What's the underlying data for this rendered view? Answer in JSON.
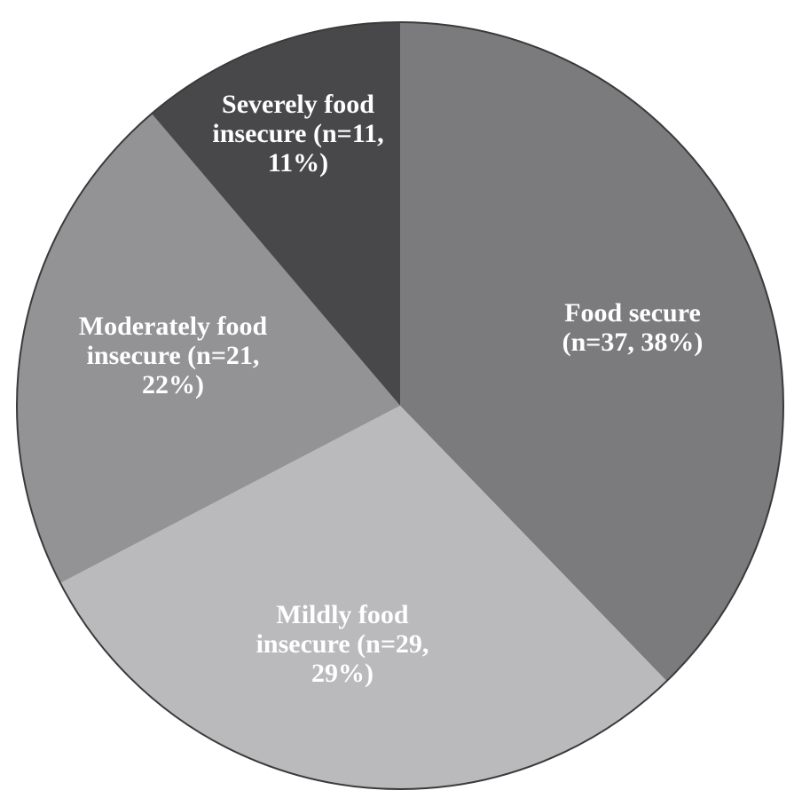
{
  "chart_data": {
    "type": "pie",
    "start_angle_deg": 0,
    "direction": "clockwise",
    "slices": [
      {
        "label": "Food secure",
        "n": 37,
        "percent": 38,
        "color": "#7b7b7d",
        "label_lines": [
          "Food secure",
          "(n=37, 38%)"
        ]
      },
      {
        "label": "Mildly food insecure",
        "n": 29,
        "percent": 29,
        "color": "#bababd",
        "label_lines": [
          "Mildly food",
          "insecure (n=29,",
          "29%)"
        ]
      },
      {
        "label": "Moderately food insecure",
        "n": 21,
        "percent": 22,
        "color": "#939396",
        "label_lines": [
          "Moderately food",
          "insecure (n=21,",
          "22%)"
        ]
      },
      {
        "label": "Severely food insecure",
        "n": 11,
        "percent": 11,
        "color": "#48484a",
        "label_lines": [
          "Severely food",
          "insecure (n=11,",
          "11%)"
        ]
      }
    ],
    "outline_color": "#3a3a3a"
  }
}
